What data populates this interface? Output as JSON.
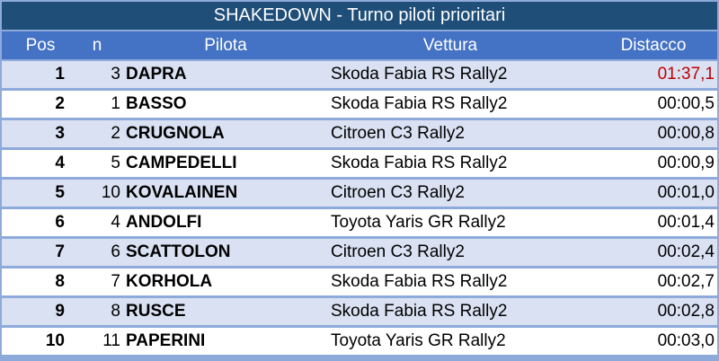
{
  "title": "SHAKEDOWN - Turno piloti prioritari",
  "columns": {
    "pos": "Pos",
    "n": "n",
    "pilota": "Pilota",
    "vettura": "Vettura",
    "distacco": "Distacco"
  },
  "colors": {
    "title_bg": "#1f4e79",
    "header_bg": "#4472c4",
    "alt_row": "#d9e1f2",
    "border": "#8eaadb",
    "leader_time": "#c00000"
  },
  "rows": [
    {
      "pos": "1",
      "n": "3",
      "pilota": "DAPRA",
      "vettura": "Skoda Fabia RS Rally2",
      "distacco": "01:37,1"
    },
    {
      "pos": "2",
      "n": "1",
      "pilota": "BASSO",
      "vettura": "Skoda Fabia RS Rally2",
      "distacco": "00:00,5"
    },
    {
      "pos": "3",
      "n": "2",
      "pilota": "CRUGNOLA",
      "vettura": "Citroen C3 Rally2",
      "distacco": "00:00,8"
    },
    {
      "pos": "4",
      "n": "5",
      "pilota": "CAMPEDELLI",
      "vettura": "Skoda Fabia RS Rally2",
      "distacco": "00:00,9"
    },
    {
      "pos": "5",
      "n": "10",
      "pilota": "KOVALAINEN",
      "vettura": "Citroen C3 Rally2",
      "distacco": "00:01,0"
    },
    {
      "pos": "6",
      "n": "4",
      "pilota": "ANDOLFI",
      "vettura": "Toyota Yaris GR Rally2",
      "distacco": "00:01,4"
    },
    {
      "pos": "7",
      "n": "6",
      "pilota": "SCATTOLON",
      "vettura": "Citroen C3 Rally2",
      "distacco": "00:02,4"
    },
    {
      "pos": "8",
      "n": "7",
      "pilota": "KORHOLA",
      "vettura": "Skoda Fabia RS Rally2",
      "distacco": "00:02,7"
    },
    {
      "pos": "9",
      "n": "8",
      "pilota": "RUSCE",
      "vettura": "Skoda Fabia RS Rally2",
      "distacco": "00:02,8"
    },
    {
      "pos": "10",
      "n": "11",
      "pilota": "PAPERINI",
      "vettura": "Toyota Yaris GR Rally2",
      "distacco": "00:03,0"
    }
  ]
}
